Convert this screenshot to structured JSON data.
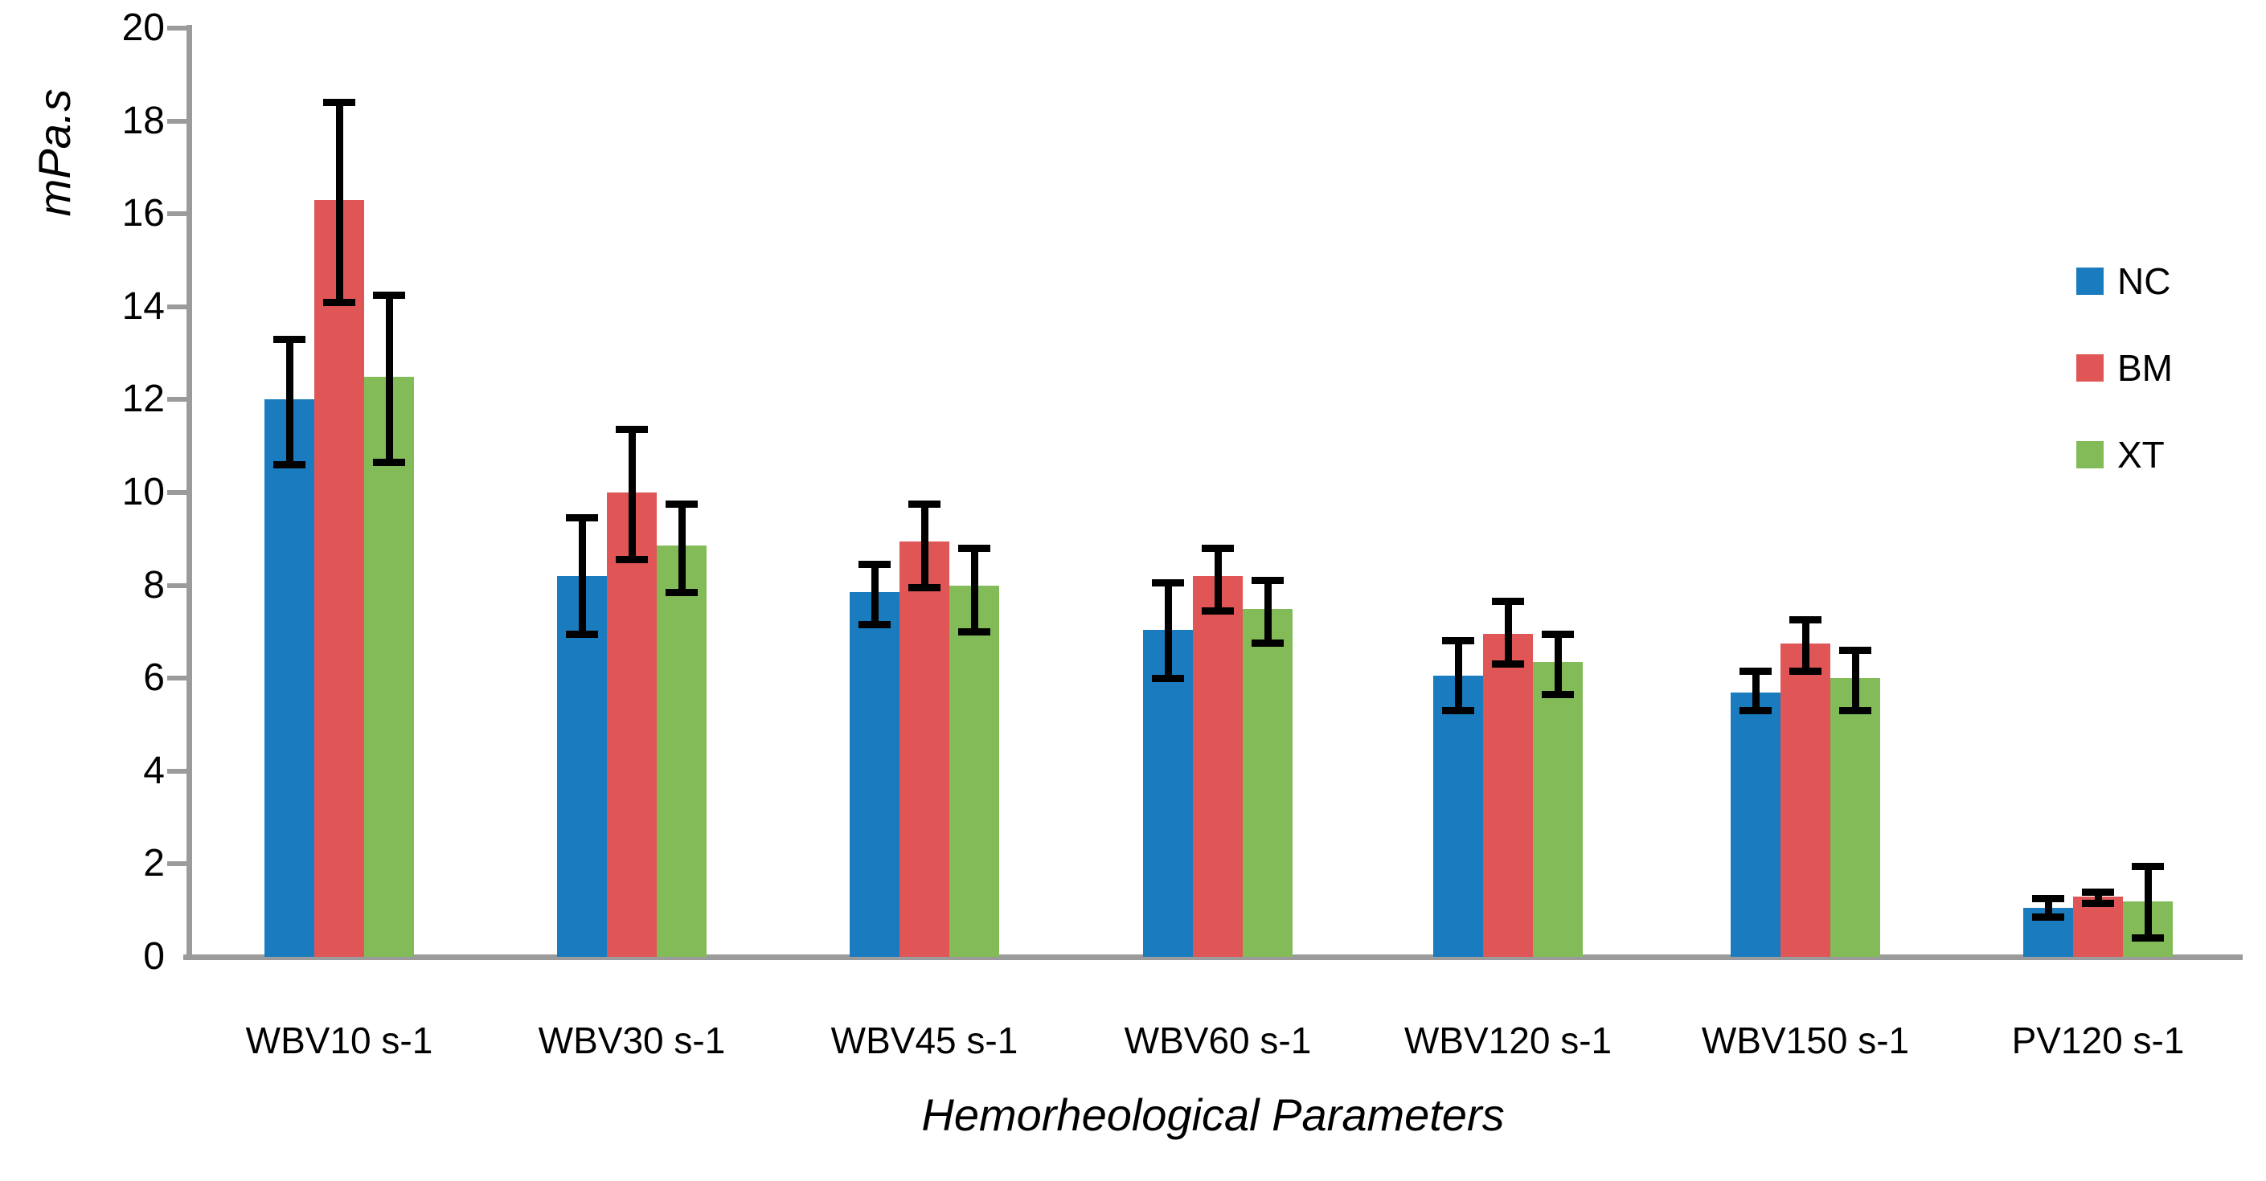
{
  "chart_data": {
    "type": "bar",
    "title": "",
    "ylabel": "mPa.s",
    "xlabel": "Hemorheological Parameters",
    "ylim": [
      0,
      20
    ],
    "ytick_step": 2,
    "ytick_labels": [
      "0",
      "2",
      "4",
      "6",
      "8",
      "10",
      "12",
      "14",
      "16",
      "18",
      "20"
    ],
    "grid": false,
    "legend_position": "right",
    "categories": [
      "WBV10 s-1",
      "WBV30 s-1",
      "WBV45 s-1",
      "WBV60 s-1",
      "WBV120 s-1",
      "WBV150 s-1",
      "PV120 s-1"
    ],
    "series": [
      {
        "name": "NC",
        "color": "#1a7cbe",
        "values": [
          12.0,
          8.2,
          7.85,
          7.05,
          6.05,
          5.7,
          1.05
        ],
        "err_high": [
          13.3,
          9.45,
          8.45,
          8.05,
          6.8,
          6.15,
          1.25
        ],
        "err_low": [
          10.6,
          6.95,
          7.15,
          6.0,
          5.3,
          5.3,
          0.85
        ]
      },
      {
        "name": "BM",
        "color": "#e05555",
        "values": [
          16.3,
          10.0,
          8.95,
          8.2,
          6.95,
          6.75,
          1.3
        ],
        "err_high": [
          18.4,
          11.35,
          9.75,
          8.8,
          7.65,
          7.25,
          1.4
        ],
        "err_low": [
          14.1,
          8.55,
          7.95,
          7.45,
          6.3,
          6.15,
          1.15
        ]
      },
      {
        "name": "XT",
        "color": "#82bb58",
        "values": [
          12.5,
          8.85,
          8.0,
          7.5,
          6.35,
          6.0,
          1.2
        ],
        "err_high": [
          14.25,
          9.75,
          8.8,
          8.1,
          6.95,
          6.6,
          1.95
        ],
        "err_low": [
          10.65,
          7.85,
          7.0,
          6.75,
          5.65,
          5.3,
          0.4
        ]
      }
    ],
    "error_bar_color": "#000000",
    "axis_color": "#9b9b9b",
    "text_color": "#000000",
    "background_color": "#ffffff"
  }
}
